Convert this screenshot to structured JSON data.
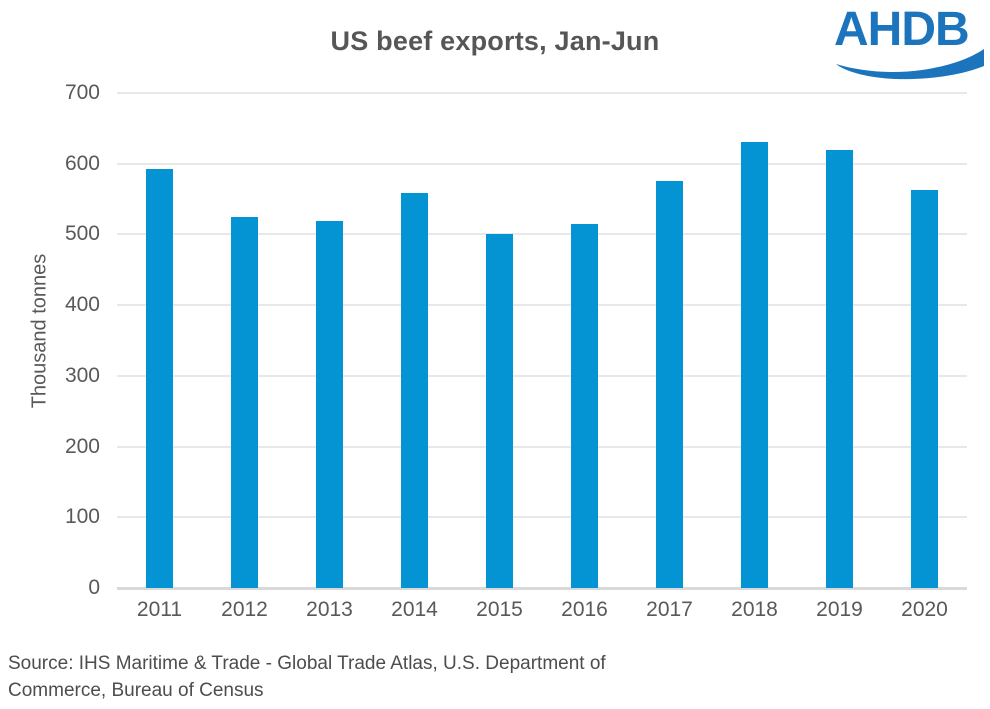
{
  "chart_data": {
    "type": "bar",
    "title": "US beef exports, Jan-Jun",
    "categories": [
      "2011",
      "2012",
      "2013",
      "2014",
      "2015",
      "2016",
      "2017",
      "2018",
      "2019",
      "2020"
    ],
    "values": [
      593,
      525,
      519,
      558,
      501,
      515,
      576,
      631,
      620,
      563
    ],
    "xlabel": "",
    "ylabel": "Thousand tonnes",
    "ylim": [
      0,
      700
    ],
    "ytick_step": 100,
    "bar_color": "#0594d3",
    "gridline_color": "#e8e8e8",
    "grid": true,
    "legend": false
  },
  "logo": {
    "text": "AHDB",
    "color": "#1c75bc"
  },
  "source": {
    "line1": "Source: IHS Maritime & Trade - Global Trade Atlas, U.S. Department of",
    "line2": "Commerce, Bureau of Census"
  }
}
